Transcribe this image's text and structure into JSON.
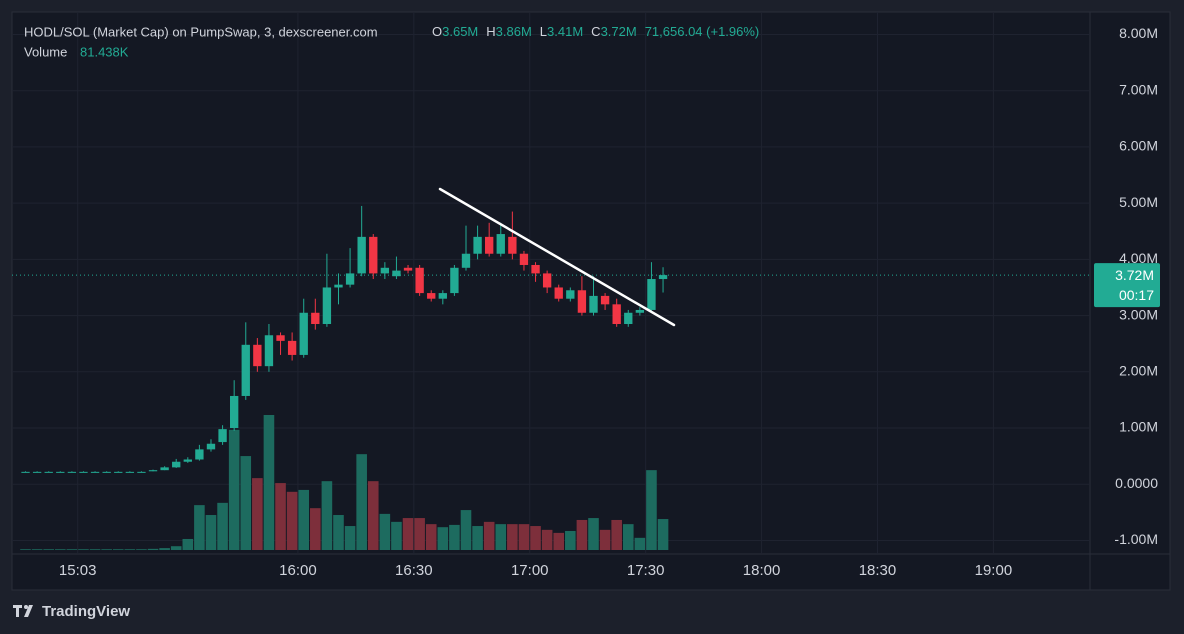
{
  "chart_data": {
    "type": "candlestick",
    "legend": {
      "title": "HODL/SOL (Market Cap) on PumpSwap, 3, dexscreener.com",
      "ohlc": [
        [
          "O",
          "3.65M"
        ],
        [
          "H",
          "3.86M"
        ],
        [
          "L",
          "3.41M"
        ],
        [
          "C",
          "3.72M"
        ]
      ],
      "change": "71,656.04 (+1.96%)",
      "volume_name": "Volume",
      "volume_value": "81.438K"
    },
    "x": [
      "14:48",
      "14:51",
      "14:54",
      "14:57",
      "15:00",
      "15:03",
      "15:06",
      "15:09",
      "15:12",
      "15:15",
      "15:18",
      "15:21",
      "15:24",
      "15:27",
      "15:30",
      "15:33",
      "15:36",
      "15:39",
      "15:42",
      "15:45",
      "15:48",
      "15:51",
      "15:54",
      "15:57",
      "16:00",
      "16:03",
      "16:06",
      "16:09",
      "16:12",
      "16:15",
      "16:18",
      "16:21",
      "16:24",
      "16:27",
      "16:30",
      "16:33",
      "16:36",
      "16:39",
      "16:42",
      "16:45",
      "16:48",
      "16:51",
      "16:54",
      "16:57",
      "17:00",
      "17:03",
      "17:06",
      "17:09",
      "17:12",
      "17:15",
      "17:18",
      "17:21",
      "17:24",
      "17:27",
      "17:30",
      "17:33"
    ],
    "open": [
      0.22,
      0.22,
      0.22,
      0.22,
      0.22,
      0.22,
      0.22,
      0.22,
      0.22,
      0.22,
      0.22,
      0.23,
      0.25,
      0.3,
      0.4,
      0.44,
      0.62,
      0.75,
      1.0,
      1.57,
      2.48,
      2.1,
      2.65,
      2.55,
      2.3,
      3.05,
      2.85,
      3.5,
      3.55,
      3.75,
      4.4,
      3.75,
      3.7,
      3.85,
      3.85,
      3.4,
      3.3,
      3.4,
      3.85,
      4.1,
      4.4,
      4.1,
      4.4,
      4.1,
      3.9,
      3.75,
      3.5,
      3.3,
      3.45,
      3.05,
      3.35,
      3.2,
      2.85,
      3.05,
      3.1,
      3.65
    ],
    "high": [
      0.23,
      0.23,
      0.23,
      0.23,
      0.23,
      0.23,
      0.23,
      0.23,
      0.23,
      0.23,
      0.23,
      0.26,
      0.32,
      0.45,
      0.48,
      0.7,
      0.8,
      1.05,
      1.85,
      2.88,
      2.6,
      2.85,
      2.7,
      2.7,
      3.3,
      3.3,
      4.1,
      3.75,
      4.2,
      4.95,
      4.45,
      3.95,
      4.05,
      3.9,
      3.9,
      3.45,
      3.45,
      3.9,
      4.6,
      4.6,
      4.65,
      4.65,
      4.85,
      4.15,
      3.95,
      3.8,
      3.55,
      3.5,
      3.7,
      3.7,
      3.4,
      3.3,
      3.1,
      3.15,
      3.95,
      3.86
    ],
    "low": [
      0.21,
      0.21,
      0.21,
      0.21,
      0.21,
      0.21,
      0.21,
      0.21,
      0.21,
      0.21,
      0.21,
      0.23,
      0.25,
      0.29,
      0.38,
      0.42,
      0.58,
      0.7,
      0.95,
      1.5,
      2.0,
      2.0,
      2.3,
      2.2,
      2.25,
      2.75,
      2.8,
      3.2,
      3.5,
      3.7,
      3.65,
      3.65,
      3.65,
      3.75,
      3.35,
      3.25,
      3.2,
      3.35,
      3.8,
      4.0,
      4.05,
      4.05,
      4.0,
      3.8,
      3.6,
      3.4,
      3.25,
      3.25,
      3.0,
      3.0,
      3.1,
      2.8,
      2.8,
      3.0,
      3.05,
      3.41
    ],
    "close": [
      0.22,
      0.22,
      0.22,
      0.22,
      0.22,
      0.22,
      0.22,
      0.22,
      0.22,
      0.22,
      0.22,
      0.25,
      0.3,
      0.4,
      0.44,
      0.62,
      0.72,
      0.98,
      1.57,
      2.48,
      2.1,
      2.65,
      2.55,
      2.3,
      3.05,
      2.85,
      3.5,
      3.55,
      3.75,
      4.4,
      3.75,
      3.85,
      3.8,
      3.8,
      3.4,
      3.3,
      3.4,
      3.85,
      4.1,
      4.4,
      4.1,
      4.45,
      4.1,
      3.9,
      3.75,
      3.5,
      3.3,
      3.45,
      3.05,
      3.35,
      3.2,
      2.85,
      3.05,
      3.1,
      3.65,
      3.72
    ],
    "volume": [
      2,
      2,
      2,
      2,
      2,
      2,
      2,
      2,
      2,
      2,
      2,
      3,
      5,
      10,
      29,
      118,
      92,
      124,
      316,
      247,
      189,
      355,
      176,
      153,
      158,
      110,
      181,
      92,
      63,
      252,
      181,
      95,
      74,
      84,
      84,
      68,
      60,
      66,
      105,
      63,
      74,
      68,
      68,
      68,
      63,
      53,
      45,
      50,
      79,
      84,
      53,
      79,
      68,
      32,
      210,
      81.438
    ],
    "up_color": "#22ab94",
    "down_color": "#f23645",
    "up_volume_color": "#1d6b5f",
    "down_volume_color": "#7d2f3b",
    "last_price": {
      "value": 3.72,
      "label": "3.72M",
      "countdown": "00:17"
    },
    "ylim": [
      -1.17,
      8.4
    ],
    "yticks": [
      {
        "value": -1,
        "label": "-1.00M"
      },
      {
        "value": 0,
        "label": "0.0000"
      },
      {
        "value": 1,
        "label": "1.00M"
      },
      {
        "value": 2,
        "label": "2.00M"
      },
      {
        "value": 3,
        "label": "3.00M"
      },
      {
        "value": 4,
        "label": "4.00M"
      },
      {
        "value": 5,
        "label": "5.00M"
      },
      {
        "value": 6,
        "label": "6.00M"
      },
      {
        "value": 7,
        "label": "7.00M"
      },
      {
        "value": 8,
        "label": "8.00M"
      }
    ],
    "xlim": [
      "14:46",
      "19:25"
    ],
    "xticks": [
      "15:03",
      "16:00",
      "16:30",
      "17:00",
      "17:30",
      "18:00",
      "18:30",
      "19:00"
    ],
    "grid": true,
    "brand": "TradingView"
  }
}
